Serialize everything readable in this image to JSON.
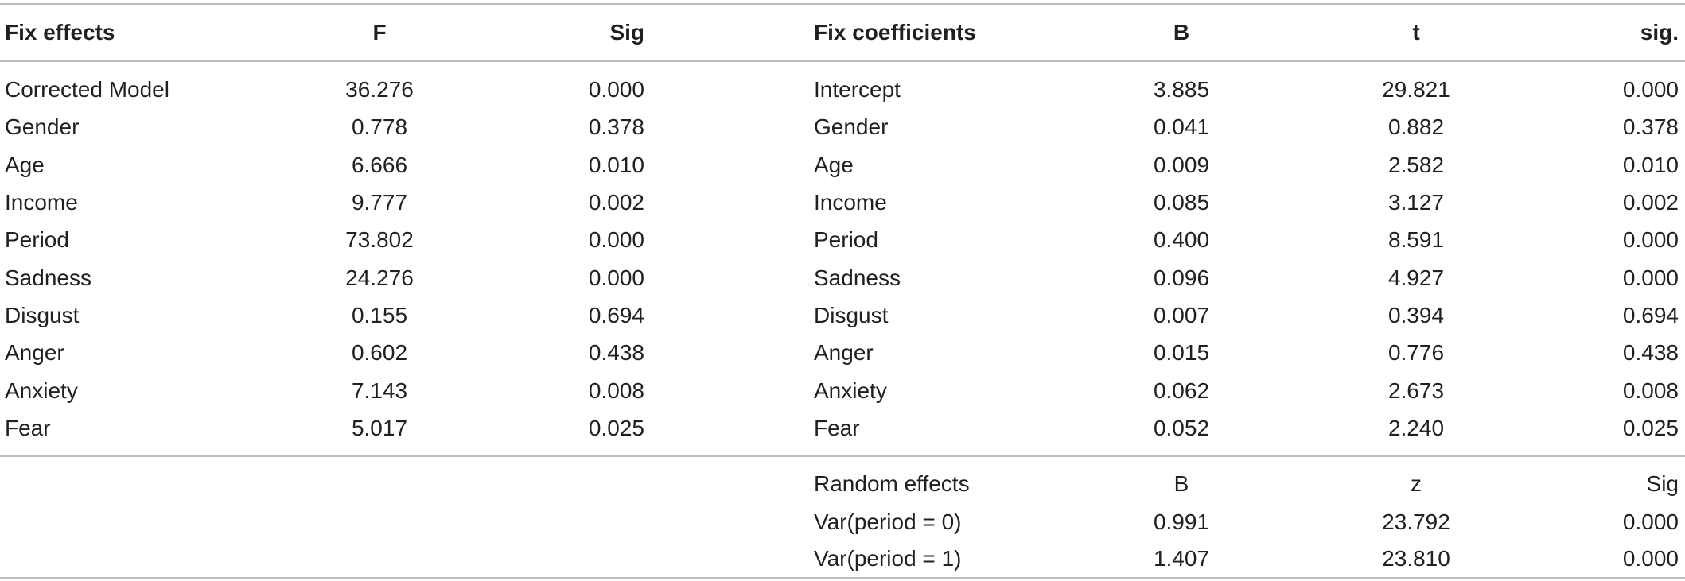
{
  "header": {
    "fix_effects": "Fix effects",
    "f": "F",
    "sig": "Sig",
    "fix_coefficients": "Fix coefficients",
    "b": "B",
    "t": "t",
    "sig2": "sig."
  },
  "rows": [
    {
      "name": "Corrected Model",
      "f": "36.276",
      "sig": "0.000",
      "coef": "Intercept",
      "b": "3.885",
      "t": "29.821",
      "sig2": "0.000"
    },
    {
      "name": "Gender",
      "f": "0.778",
      "sig": "0.378",
      "coef": "Gender",
      "b": "0.041",
      "t": "0.882",
      "sig2": "0.378"
    },
    {
      "name": "Age",
      "f": "6.666",
      "sig": "0.010",
      "coef": "Age",
      "b": "0.009",
      "t": "2.582",
      "sig2": "0.010"
    },
    {
      "name": "Income",
      "f": "9.777",
      "sig": "0.002",
      "coef": "Income",
      "b": "0.085",
      "t": "3.127",
      "sig2": "0.002"
    },
    {
      "name": "Period",
      "f": "73.802",
      "sig": "0.000",
      "coef": "Period",
      "b": "0.400",
      "t": "8.591",
      "sig2": "0.000"
    },
    {
      "name": "Sadness",
      "f": "24.276",
      "sig": "0.000",
      "coef": "Sadness",
      "b": "0.096",
      "t": "4.927",
      "sig2": "0.000"
    },
    {
      "name": "Disgust",
      "f": "0.155",
      "sig": "0.694",
      "coef": "Disgust",
      "b": "0.007",
      "t": "0.394",
      "sig2": "0.694"
    },
    {
      "name": "Anger",
      "f": "0.602",
      "sig": "0.438",
      "coef": "Anger",
      "b": "0.015",
      "t": "0.776",
      "sig2": "0.438"
    },
    {
      "name": "Anxiety",
      "f": "7.143",
      "sig": "0.008",
      "coef": "Anxiety",
      "b": "0.062",
      "t": "2.673",
      "sig2": "0.008"
    },
    {
      "name": "Fear",
      "f": "5.017",
      "sig": "0.025",
      "coef": "Fear",
      "b": "0.052",
      "t": "2.240",
      "sig2": "0.025"
    }
  ],
  "random": {
    "header": {
      "name": "Random effects",
      "b": "B",
      "z": "z",
      "sig": "Sig"
    },
    "rows": [
      {
        "name": "Var(period = 0)",
        "b": "0.991",
        "z": "23.792",
        "sig": "0.000"
      },
      {
        "name": "Var(period = 1)",
        "b": "1.407",
        "z": "23.810",
        "sig": "0.000"
      }
    ]
  }
}
